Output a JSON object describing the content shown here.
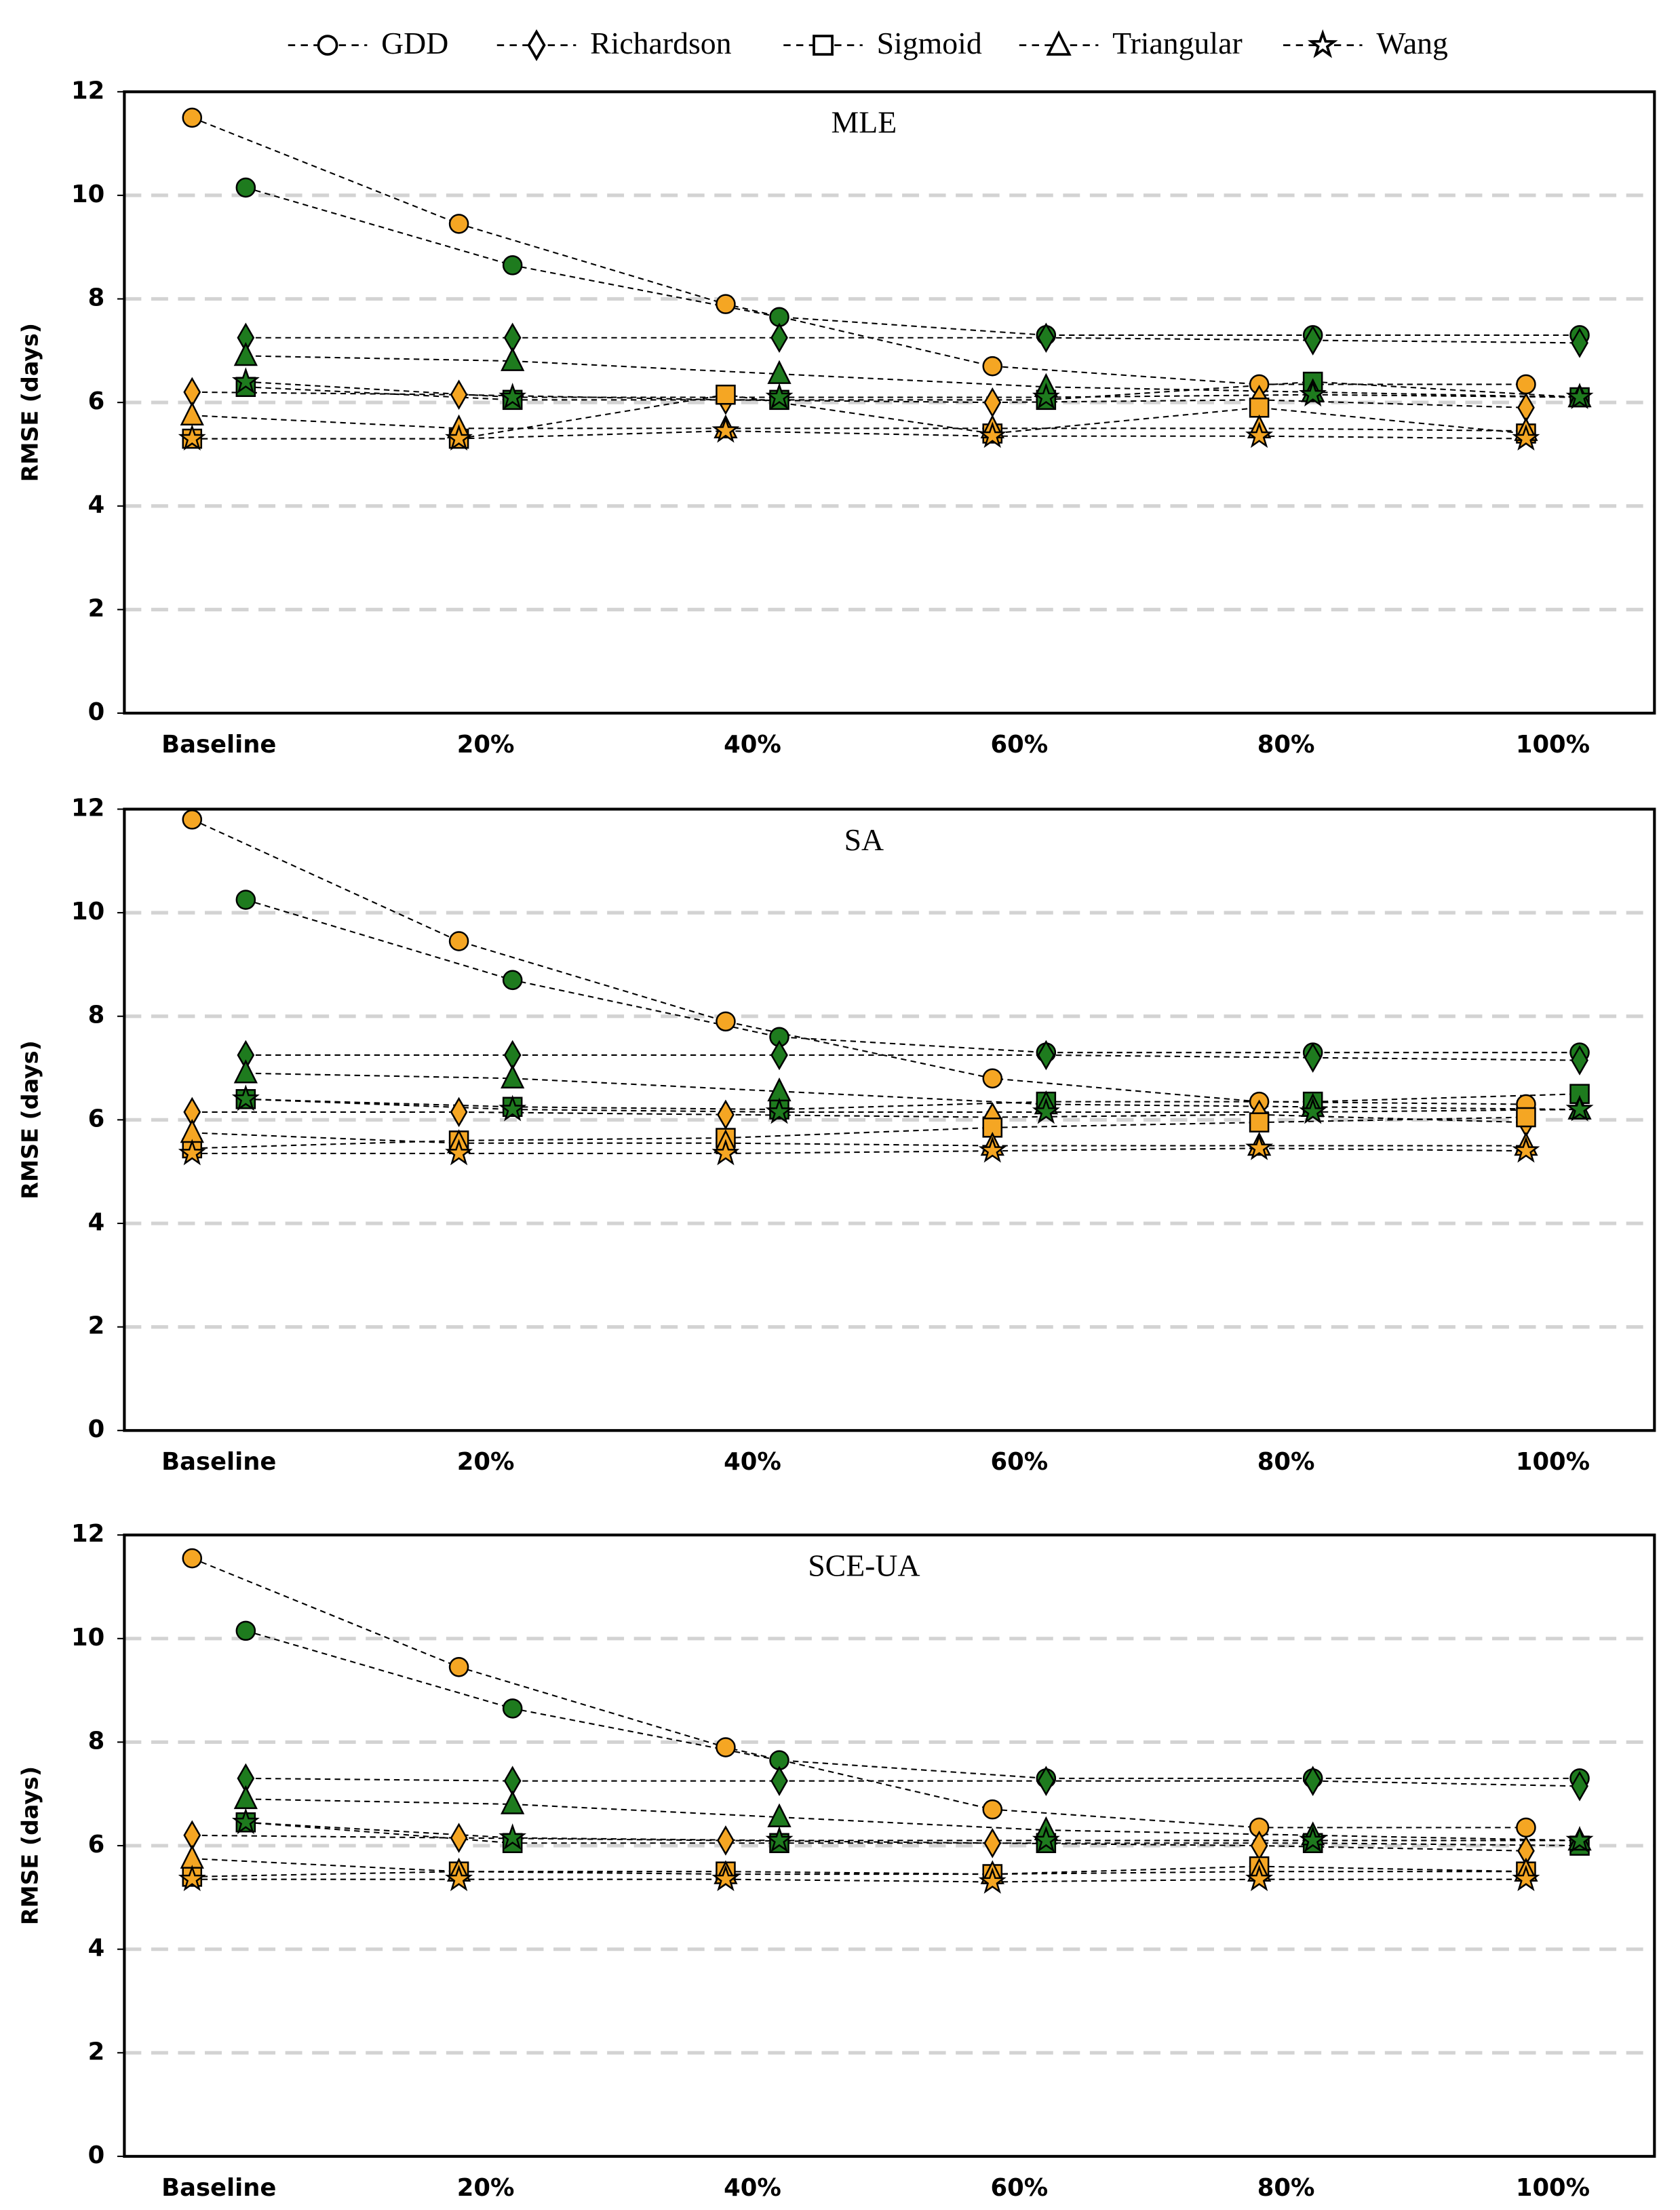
{
  "legend": [
    {
      "name": "GDD",
      "marker": "circle"
    },
    {
      "name": "Richardson",
      "marker": "diamond"
    },
    {
      "name": "Sigmoid",
      "marker": "square"
    },
    {
      "name": "Triangular",
      "marker": "triangle"
    },
    {
      "name": "Wang",
      "marker": "star"
    }
  ],
  "chart_data": [
    {
      "type": "line",
      "title": "MLE",
      "y_label": "RMSE (days)",
      "categories": [
        "Baseline",
        "20%",
        "40%",
        "60%",
        "80%",
        "100%"
      ],
      "ylim": [
        0,
        12
      ],
      "yticks": [
        0,
        2,
        4,
        6,
        8,
        10,
        12
      ],
      "grid": true,
      "series": [
        {
          "name": "GDD",
          "marker": "circle",
          "color": "#f5a623",
          "values": [
            11.5,
            9.45,
            7.9,
            6.7,
            6.35,
            6.35
          ]
        },
        {
          "name": "GDD",
          "marker": "circle",
          "color": "#1e7b1e",
          "values": [
            10.15,
            8.65,
            7.65,
            7.3,
            7.3,
            7.3
          ]
        },
        {
          "name": "Richardson",
          "marker": "diamond",
          "color": "#f5a623",
          "values": [
            6.2,
            6.15,
            6.05,
            6.0,
            6.05,
            5.9
          ]
        },
        {
          "name": "Richardson",
          "marker": "diamond",
          "color": "#1e7b1e",
          "values": [
            7.25,
            7.25,
            7.25,
            7.25,
            7.2,
            7.15
          ]
        },
        {
          "name": "Sigmoid",
          "marker": "square",
          "color": "#f5a623",
          "values": [
            5.3,
            5.3,
            6.15,
            5.4,
            5.9,
            5.4
          ]
        },
        {
          "name": "Sigmoid",
          "marker": "square",
          "color": "#1e7b1e",
          "values": [
            6.3,
            6.05,
            6.05,
            6.05,
            6.4,
            6.1
          ]
        },
        {
          "name": "Triangular",
          "marker": "triangle",
          "color": "#f5a623",
          "values": [
            5.75,
            5.5,
            5.5,
            5.5,
            5.5,
            5.45
          ]
        },
        {
          "name": "Triangular",
          "marker": "triangle",
          "color": "#1e7b1e",
          "values": [
            6.9,
            6.8,
            6.55,
            6.3,
            6.2,
            6.1
          ]
        },
        {
          "name": "Wang",
          "marker": "star",
          "color": "#f5a623",
          "values": [
            5.3,
            5.3,
            5.45,
            5.35,
            5.35,
            5.3
          ]
        },
        {
          "name": "Wang",
          "marker": "star",
          "color": "#1e7b1e",
          "values": [
            6.4,
            6.1,
            6.1,
            6.1,
            6.15,
            6.1
          ]
        }
      ]
    },
    {
      "type": "line",
      "title": "SA",
      "y_label": "RMSE (days)",
      "categories": [
        "Baseline",
        "20%",
        "40%",
        "60%",
        "80%",
        "100%"
      ],
      "ylim": [
        0,
        12
      ],
      "yticks": [
        0,
        2,
        4,
        6,
        8,
        10,
        12
      ],
      "grid": true,
      "series": [
        {
          "name": "GDD",
          "marker": "circle",
          "color": "#f5a623",
          "values": [
            11.8,
            9.45,
            7.9,
            6.8,
            6.35,
            6.3
          ]
        },
        {
          "name": "GDD",
          "marker": "circle",
          "color": "#1e7b1e",
          "values": [
            10.25,
            8.7,
            7.6,
            7.3,
            7.3,
            7.3
          ]
        },
        {
          "name": "Richardson",
          "marker": "diamond",
          "color": "#f5a623",
          "values": [
            6.15,
            6.15,
            6.1,
            6.05,
            6.1,
            5.95
          ]
        },
        {
          "name": "Richardson",
          "marker": "diamond",
          "color": "#1e7b1e",
          "values": [
            7.25,
            7.25,
            7.25,
            7.25,
            7.2,
            7.15
          ]
        },
        {
          "name": "Sigmoid",
          "marker": "square",
          "color": "#f5a623",
          "values": [
            5.45,
            5.6,
            5.65,
            5.85,
            5.95,
            6.05
          ]
        },
        {
          "name": "Sigmoid",
          "marker": "square",
          "color": "#1e7b1e",
          "values": [
            6.4,
            6.25,
            6.2,
            6.35,
            6.35,
            6.5
          ]
        },
        {
          "name": "Triangular",
          "marker": "triangle",
          "color": "#f5a623",
          "values": [
            5.75,
            5.55,
            5.55,
            5.5,
            5.5,
            5.5
          ]
        },
        {
          "name": "Triangular",
          "marker": "triangle",
          "color": "#1e7b1e",
          "values": [
            6.9,
            6.8,
            6.55,
            6.3,
            6.25,
            6.2
          ]
        },
        {
          "name": "Wang",
          "marker": "star",
          "color": "#f5a623",
          "values": [
            5.35,
            5.35,
            5.35,
            5.4,
            5.45,
            5.4
          ]
        },
        {
          "name": "Wang",
          "marker": "star",
          "color": "#1e7b1e",
          "values": [
            6.4,
            6.2,
            6.15,
            6.15,
            6.15,
            6.2
          ]
        }
      ]
    },
    {
      "type": "line",
      "title": "SCE-UA",
      "y_label": "RMSE (days)",
      "categories": [
        "Baseline",
        "20%",
        "40%",
        "60%",
        "80%",
        "100%"
      ],
      "ylim": [
        0,
        12
      ],
      "yticks": [
        0,
        2,
        4,
        6,
        8,
        10,
        12
      ],
      "grid": true,
      "series": [
        {
          "name": "GDD",
          "marker": "circle",
          "color": "#f5a623",
          "values": [
            11.55,
            9.45,
            7.9,
            6.7,
            6.35,
            6.35
          ]
        },
        {
          "name": "GDD",
          "marker": "circle",
          "color": "#1e7b1e",
          "values": [
            10.15,
            8.65,
            7.65,
            7.3,
            7.3,
            7.3
          ]
        },
        {
          "name": "Richardson",
          "marker": "diamond",
          "color": "#f5a623",
          "values": [
            6.2,
            6.15,
            6.1,
            6.05,
            6.0,
            5.9
          ]
        },
        {
          "name": "Richardson",
          "marker": "diamond",
          "color": "#1e7b1e",
          "values": [
            7.3,
            7.25,
            7.25,
            7.25,
            7.25,
            7.15
          ]
        },
        {
          "name": "Sigmoid",
          "marker": "square",
          "color": "#f5a623",
          "values": [
            5.4,
            5.5,
            5.5,
            5.45,
            5.6,
            5.5
          ]
        },
        {
          "name": "Sigmoid",
          "marker": "square",
          "color": "#1e7b1e",
          "values": [
            6.45,
            6.05,
            6.05,
            6.05,
            6.05,
            6.0
          ]
        },
        {
          "name": "Triangular",
          "marker": "triangle",
          "color": "#f5a623",
          "values": [
            5.75,
            5.5,
            5.45,
            5.45,
            5.5,
            5.5
          ]
        },
        {
          "name": "Triangular",
          "marker": "triangle",
          "color": "#1e7b1e",
          "values": [
            6.9,
            6.8,
            6.55,
            6.3,
            6.2,
            6.1
          ]
        },
        {
          "name": "Wang",
          "marker": "star",
          "color": "#f5a623",
          "values": [
            5.35,
            5.35,
            5.35,
            5.3,
            5.35,
            5.35
          ]
        },
        {
          "name": "Wang",
          "marker": "star",
          "color": "#1e7b1e",
          "values": [
            6.45,
            6.15,
            6.1,
            6.1,
            6.1,
            6.1
          ]
        }
      ]
    }
  ]
}
